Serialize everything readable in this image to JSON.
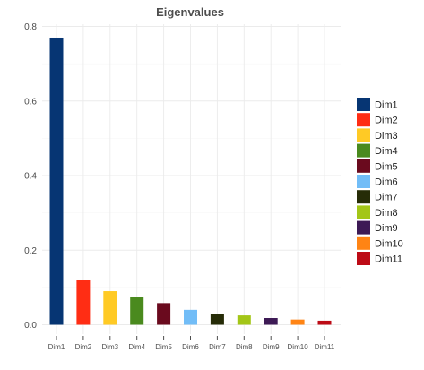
{
  "chart_data": {
    "type": "bar",
    "title": "Eigenvalues",
    "xlabel": "",
    "ylabel": "",
    "categories": [
      "Dim1",
      "Dim2",
      "Dim3",
      "Dim4",
      "Dim5",
      "Dim6",
      "Dim7",
      "Dim8",
      "Dim9",
      "Dim10",
      "Dim11"
    ],
    "values": [
      0.77,
      0.12,
      0.09,
      0.075,
      0.058,
      0.04,
      0.03,
      0.025,
      0.018,
      0.014,
      0.011
    ],
    "colors": [
      "#063573",
      "#FF2D14",
      "#FFCA25",
      "#4A8A1E",
      "#6A0A1E",
      "#72BDF7",
      "#262C07",
      "#A3C617",
      "#3D1A55",
      "#FF8414",
      "#BD0B16"
    ],
    "ylim": [
      0,
      0.8
    ],
    "yticks": [
      "0.0",
      "0.2",
      "0.4",
      "0.6",
      "0.8"
    ],
    "grid": true,
    "legend": {
      "position": "right",
      "entries": [
        "Dim1",
        "Dim2",
        "Dim3",
        "Dim4",
        "Dim5",
        "Dim6",
        "Dim7",
        "Dim8",
        "Dim9",
        "Dim10",
        "Dim11"
      ]
    }
  }
}
